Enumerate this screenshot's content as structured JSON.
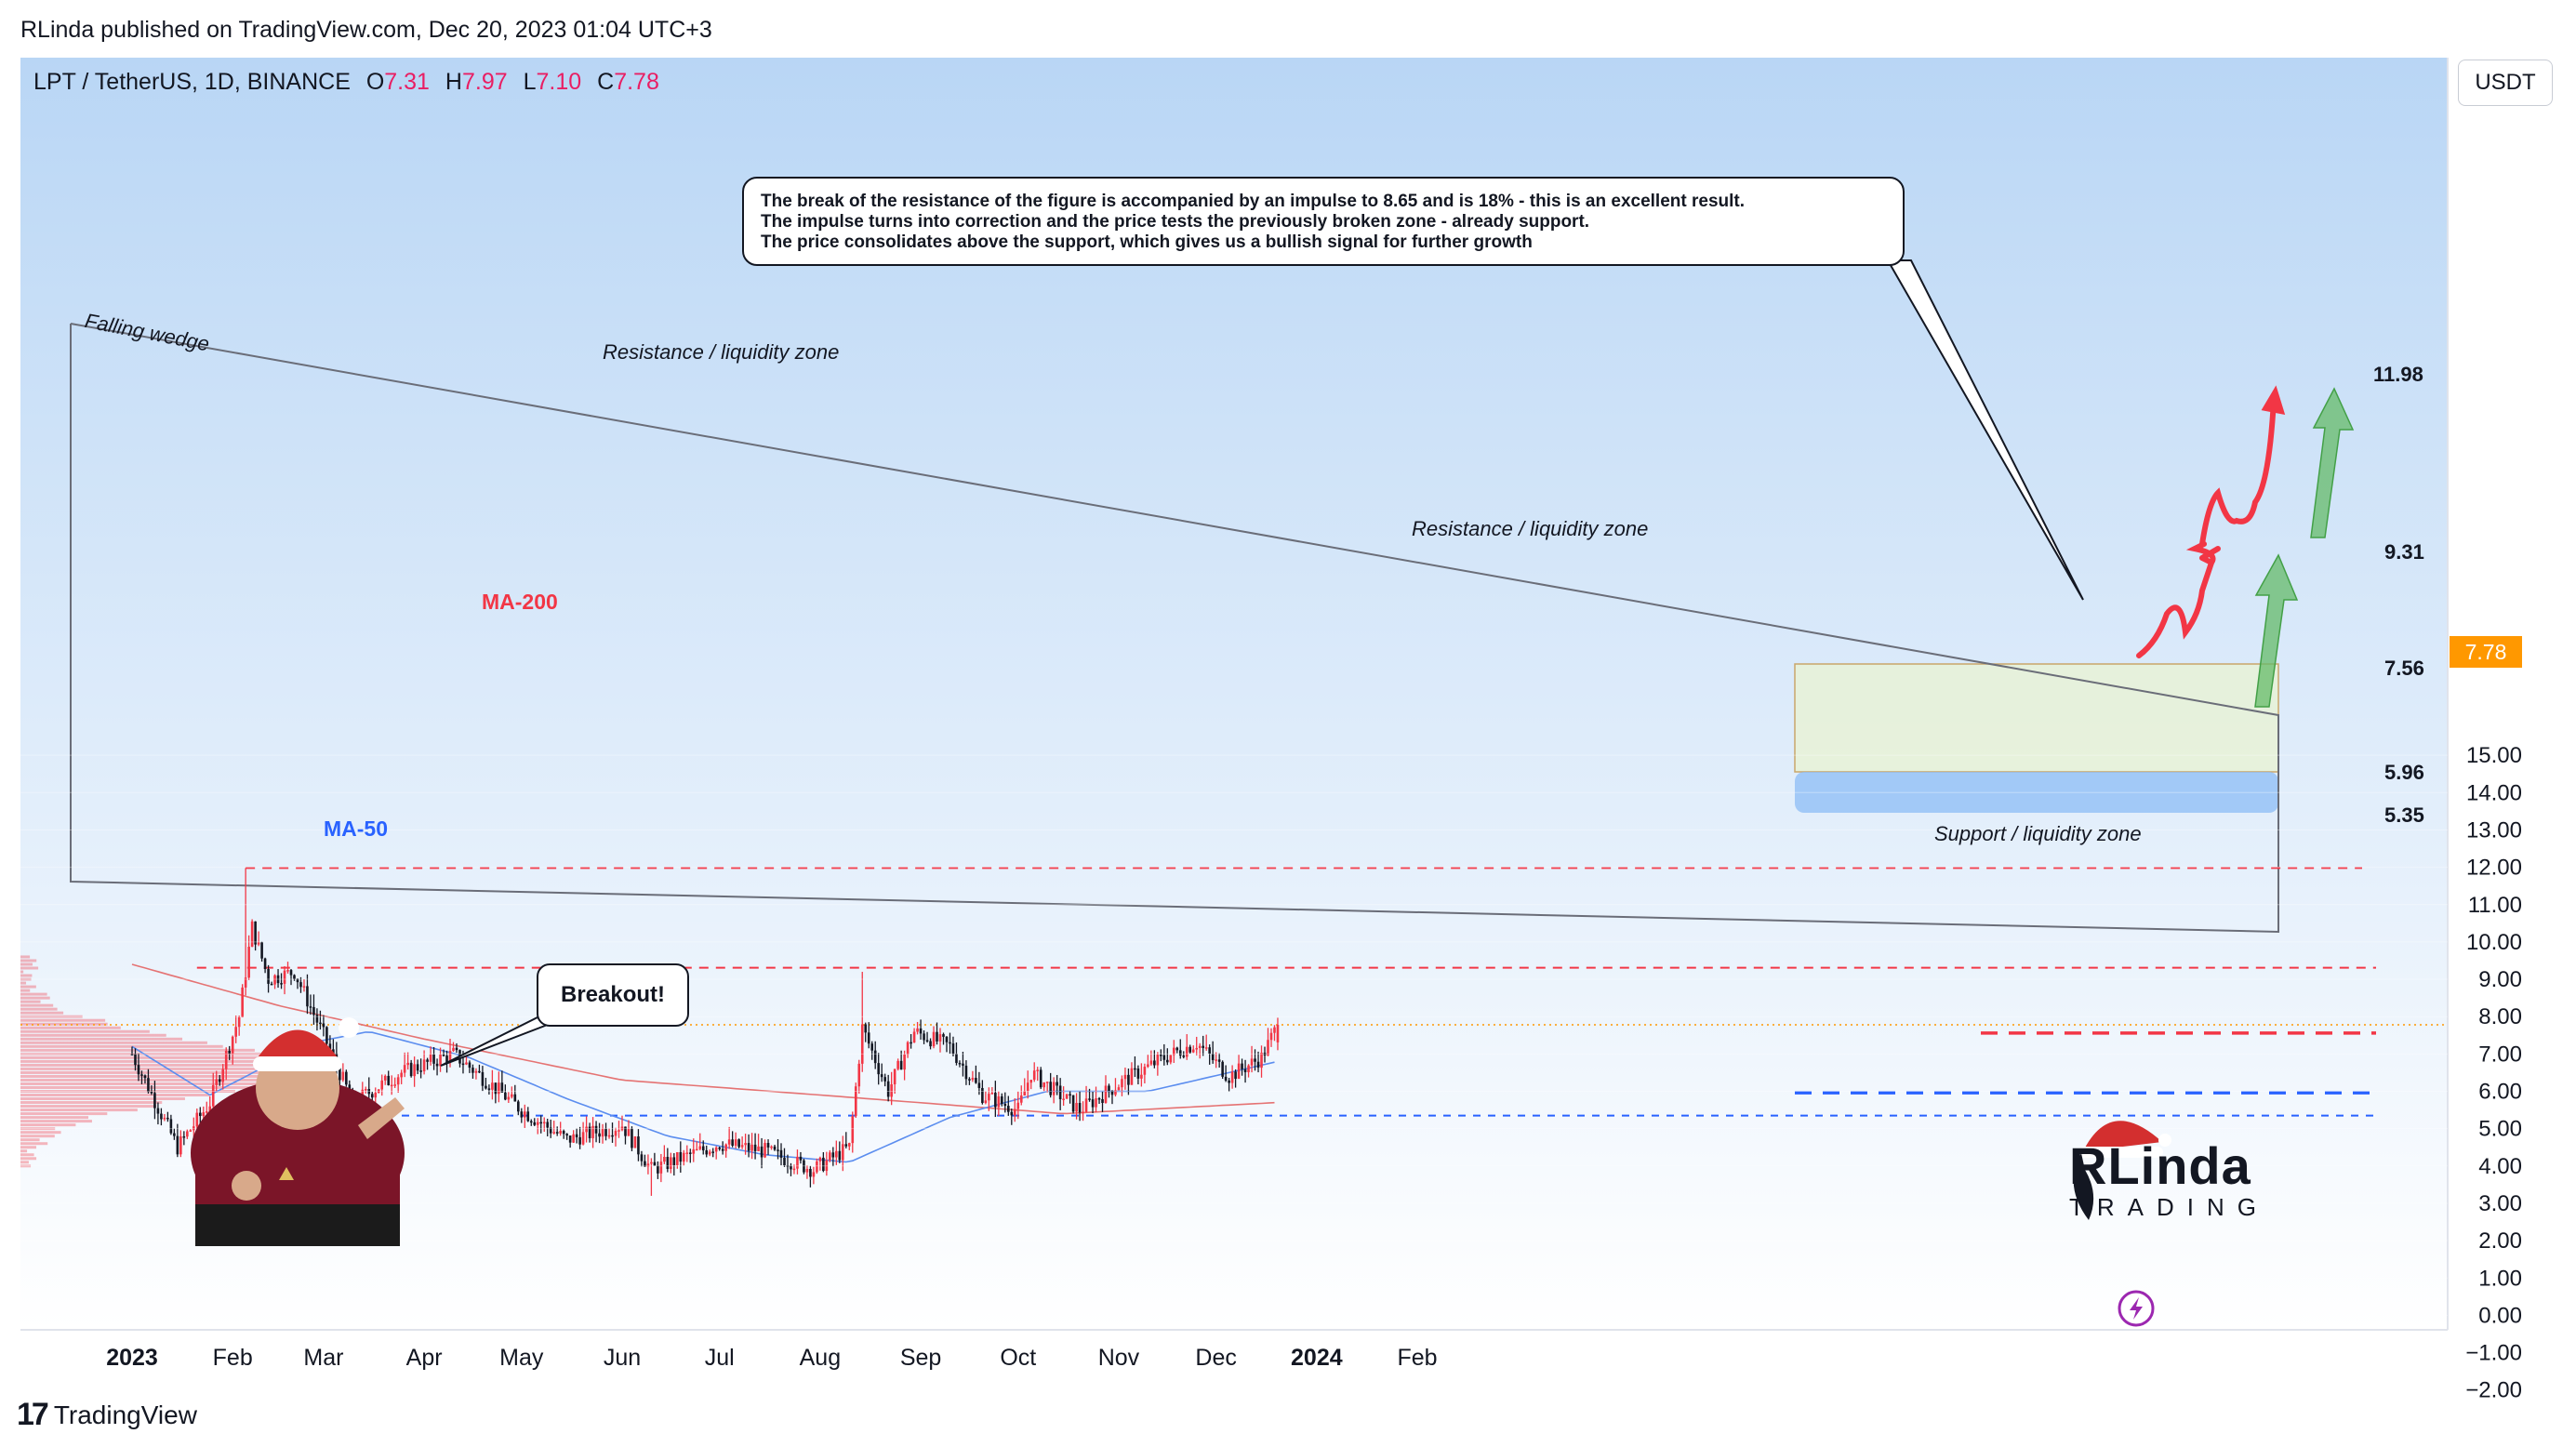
{
  "header": {
    "published": "RLinda published on TradingView.com, Dec 20, 2023 01:04 UTC+3"
  },
  "symbol": {
    "title": "LPT / TetherUS, 1D, BINANCE",
    "o_label": "O",
    "o": "7.31",
    "h_label": "H",
    "h": "7.97",
    "l_label": "L",
    "l": "7.10",
    "c_label": "C",
    "c": "7.78"
  },
  "currency_button": "USDT",
  "annotation": {
    "lines": [
      "The break of the resistance of the figure is accompanied by an impulse to 8.65 and is 18% - this is an excellent result.",
      "The impulse turns into correction and the price tests the previously broken zone - already support.",
      "The price consolidates above the support, which gives us a bullish signal for further growth"
    ]
  },
  "bubble": {
    "breakout": "Breakout!"
  },
  "labels": {
    "falling_wedge": "Falling wedge",
    "resistance_top": "Resistance / liquidity zone",
    "resistance_mid": "Resistance / liquidity zone",
    "support": "Support / liquidity zone",
    "ma200": "MA-200",
    "ma50": "MA-50"
  },
  "levels": {
    "l1198": "11.98",
    "l931": "9.31",
    "l756": "7.56",
    "l596": "5.96",
    "l535": "5.35",
    "current": "7.78"
  },
  "logo": {
    "top": "RLinda",
    "bottom": "TRADING"
  },
  "footer": {
    "brand": "TradingView"
  },
  "colors": {
    "up": "#f23645",
    "down": "#131722",
    "ma50": "#5b8def",
    "ma200": "#e57373",
    "resistance": "#f23645",
    "support": "#2962ff",
    "projection_red": "#f23645",
    "projection_green": "#66bb6a",
    "price_tag": "#ff9800"
  },
  "chart_data": {
    "type": "candlestick",
    "x_ticks": [
      "2023",
      "Feb",
      "Mar",
      "Apr",
      "May",
      "Jun",
      "Jul",
      "Aug",
      "Sep",
      "Oct",
      "Nov",
      "Dec",
      "2024",
      "Feb"
    ],
    "y_ticks": [
      "15.00",
      "14.00",
      "13.00",
      "12.00",
      "11.00",
      "10.00",
      "9.00",
      "8.00",
      "7.00",
      "6.00",
      "5.00",
      "4.00",
      "3.00",
      "2.00",
      "1.00",
      "0.00",
      "−1.00",
      "−2.00"
    ],
    "ylim": [
      -2.5,
      16.5
    ],
    "price_anchors": [
      [
        "2023-01-01",
        7.0
      ],
      [
        "2023-01-15",
        4.5
      ],
      [
        "2023-01-25",
        5.7
      ],
      [
        "2023-02-03",
        8.0
      ],
      [
        "2023-02-07",
        10.4
      ],
      [
        "2023-02-12",
        9.0
      ],
      [
        "2023-02-20",
        9.2
      ],
      [
        "2023-03-01",
        7.5
      ],
      [
        "2023-03-10",
        5.7
      ],
      [
        "2023-03-25",
        6.5
      ],
      [
        "2023-04-10",
        7.0
      ],
      [
        "2023-04-20",
        6.3
      ],
      [
        "2023-05-01",
        5.5
      ],
      [
        "2023-05-15",
        4.7
      ],
      [
        "2023-06-01",
        5.1
      ],
      [
        "2023-06-10",
        3.9
      ],
      [
        "2023-07-01",
        4.6
      ],
      [
        "2023-07-15",
        4.4
      ],
      [
        "2023-07-30",
        3.9
      ],
      [
        "2023-08-10",
        4.5
      ],
      [
        "2023-08-14",
        7.7
      ],
      [
        "2023-08-22",
        6.0
      ],
      [
        "2023-08-30",
        7.6
      ],
      [
        "2023-09-10",
        7.2
      ],
      [
        "2023-09-20",
        5.9
      ],
      [
        "2023-10-01",
        5.5
      ],
      [
        "2023-10-05",
        6.5
      ],
      [
        "2023-10-20",
        5.5
      ],
      [
        "2023-11-01",
        6.2
      ],
      [
        "2023-11-15",
        6.9
      ],
      [
        "2023-11-25",
        7.3
      ],
      [
        "2023-12-05",
        6.4
      ],
      [
        "2023-12-15",
        6.9
      ],
      [
        "2023-12-20",
        7.78
      ]
    ],
    "ma50_anchors": [
      [
        "2023-01-01",
        7.2
      ],
      [
        "2023-01-25",
        5.9
      ],
      [
        "2023-02-25",
        7.3
      ],
      [
        "2023-03-15",
        7.6
      ],
      [
        "2023-04-15",
        6.9
      ],
      [
        "2023-05-15",
        5.8
      ],
      [
        "2023-06-15",
        4.8
      ],
      [
        "2023-07-15",
        4.3
      ],
      [
        "2023-08-10",
        4.1
      ],
      [
        "2023-09-10",
        5.3
      ],
      [
        "2023-10-10",
        6.0
      ],
      [
        "2023-11-10",
        6.0
      ],
      [
        "2023-12-20",
        6.8
      ]
    ],
    "ma200_anchors": [
      [
        "2023-01-01",
        9.4
      ],
      [
        "2023-02-15",
        8.3
      ],
      [
        "2023-04-01",
        7.4
      ],
      [
        "2023-06-01",
        6.3
      ],
      [
        "2023-08-01",
        5.9
      ],
      [
        "2023-09-15",
        5.6
      ],
      [
        "2023-10-15",
        5.4
      ],
      [
        "2023-12-20",
        5.7
      ]
    ],
    "levels": [
      11.98,
      9.31,
      7.56,
      5.96,
      5.35
    ],
    "current_price": 7.78
  }
}
